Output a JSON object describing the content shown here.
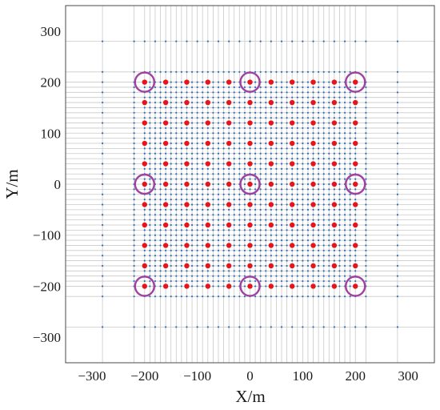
{
  "chart_data": {
    "type": "scatter",
    "xlabel": "X/m",
    "ylabel": "Y/m",
    "xlim": [
      -350,
      350
    ],
    "ylim": [
      -350,
      350
    ],
    "xticks": [
      -300,
      -200,
      -100,
      0,
      100,
      200,
      300
    ],
    "yticks": [
      -300,
      -200,
      -100,
      0,
      100,
      200,
      300
    ],
    "grid": true,
    "grid_lines": [
      -280,
      -220,
      -200,
      -190,
      -180,
      -170,
      -160,
      -150,
      -140,
      -130,
      -120,
      -110,
      -100,
      -90,
      -80,
      -70,
      -60,
      -50,
      -40,
      -30,
      -20,
      -10,
      0,
      10,
      20,
      30,
      40,
      50,
      60,
      70,
      80,
      90,
      100,
      110,
      120,
      130,
      140,
      150,
      160,
      170,
      180,
      190,
      200,
      220,
      280
    ],
    "series": [
      {
        "marker": "small-dot",
        "color": "#2e6db4",
        "grid_points": {
          "coords": [
            -280,
            -220,
            -200,
            -190,
            -180,
            -170,
            -160,
            -150,
            -140,
            -130,
            -120,
            -110,
            -100,
            -90,
            -80,
            -70,
            -60,
            -50,
            -40,
            -30,
            -20,
            -10,
            0,
            10,
            20,
            30,
            40,
            50,
            60,
            70,
            80,
            90,
            100,
            110,
            120,
            130,
            140,
            150,
            160,
            170,
            180,
            190,
            200,
            220,
            280
          ],
          "sparse_coords": [
            -280,
            280
          ]
        }
      },
      {
        "marker": "red-dot",
        "color": "#e8141c",
        "x": [
          -200,
          -160,
          -120,
          -80,
          -40,
          0,
          40,
          80,
          120,
          160,
          200
        ],
        "y": [
          -200,
          -160,
          -120,
          -80,
          -40,
          0,
          40,
          80,
          120,
          160,
          200
        ]
      },
      {
        "marker": "circle",
        "color": "#a040a0",
        "points": [
          [
            -200,
            200
          ],
          [
            0,
            200
          ],
          [
            200,
            200
          ],
          [
            -200,
            0
          ],
          [
            0,
            0
          ],
          [
            200,
            0
          ],
          [
            -200,
            -200
          ],
          [
            0,
            -200
          ],
          [
            200,
            -200
          ]
        ]
      }
    ]
  }
}
